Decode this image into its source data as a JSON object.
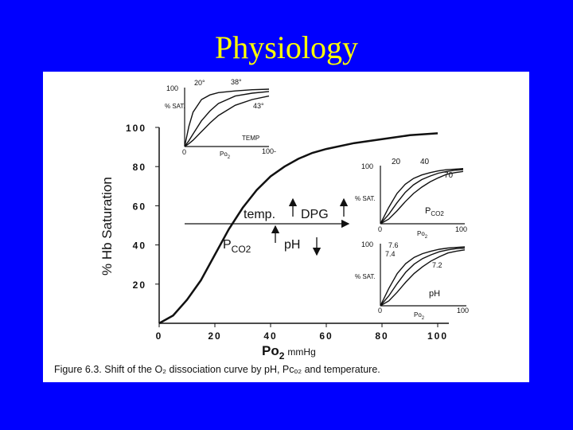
{
  "slide": {
    "title": "Physiology",
    "colors": {
      "background": "#0000ff",
      "title": "#ffff00",
      "figure_bg": "#ffffff",
      "ink": "#111111"
    }
  },
  "figure": {
    "caption": "Figure 6.3.  Shift of the O₂ dissociation curve by pH, Pᴄₒ₂ and temperature."
  },
  "chart_data": [
    {
      "type": "line",
      "title": "",
      "xlabel_main": "Po",
      "xlabel_sub": "2",
      "xlabel_unit": "mmHg",
      "ylabel": "% Hb Saturation",
      "xlim": [
        0,
        100
      ],
      "ylim": [
        0,
        100
      ],
      "xticks": [
        0,
        20,
        40,
        60,
        80,
        100
      ],
      "yticks": [
        20,
        40,
        60,
        80,
        100
      ],
      "series": [
        {
          "x": [
            0,
            5,
            10,
            15,
            20,
            25,
            30,
            35,
            40,
            45,
            50,
            55,
            60,
            70,
            80,
            90,
            100
          ],
          "y": [
            0,
            4,
            12,
            22,
            35,
            48,
            59,
            68,
            75,
            80,
            84,
            87,
            89,
            92,
            94,
            96,
            97
          ]
        }
      ],
      "annotations": {
        "temp": "temp.",
        "dpg": "DPG",
        "pco2_main": "P",
        "pco2_sub": "CO2",
        "ph": "pH"
      }
    },
    {
      "type": "line",
      "title": "",
      "ylabel": "% SAT.",
      "xlabel": "TEMP",
      "xlabel_po2": "Po",
      "xlabel_po2_sub": "2",
      "xlim": [
        0,
        100
      ],
      "ylim": [
        0,
        100
      ],
      "tick_labels": {
        "y_top": "100",
        "x_zero": "0",
        "x_end": "100-"
      },
      "series": [
        {
          "name": "20°",
          "x": [
            0,
            5,
            10,
            20,
            30,
            40,
            60,
            80,
            100
          ],
          "y": [
            0,
            35,
            60,
            82,
            90,
            94,
            97,
            99,
            100
          ]
        },
        {
          "name": "38°",
          "x": [
            0,
            5,
            10,
            20,
            30,
            40,
            60,
            80,
            100
          ],
          "y": [
            0,
            10,
            22,
            45,
            62,
            75,
            88,
            93,
            96
          ]
        },
        {
          "name": "43°",
          "x": [
            0,
            5,
            10,
            20,
            30,
            40,
            60,
            80,
            100
          ],
          "y": [
            0,
            5,
            11,
            26,
            41,
            54,
            72,
            82,
            88
          ]
        }
      ]
    },
    {
      "type": "line",
      "title": "",
      "ylabel": "% SAT.",
      "xlabel": "PCO2",
      "xlabel_main": "P",
      "xlabel_sub": "CO2",
      "xlabel_po2": "Po",
      "xlabel_po2_sub": "2",
      "xlim": [
        0,
        100
      ],
      "ylim": [
        0,
        100
      ],
      "tick_labels": {
        "y_top": "100",
        "x_zero": "0",
        "x_end": "100"
      },
      "series": [
        {
          "name": "20",
          "x": [
            0,
            10,
            20,
            30,
            40,
            50,
            60,
            70,
            80,
            90,
            100
          ],
          "y": [
            0,
            28,
            52,
            68,
            78,
            84,
            88,
            91,
            93,
            94,
            95
          ]
        },
        {
          "name": "40",
          "x": [
            0,
            10,
            20,
            30,
            40,
            50,
            60,
            70,
            80,
            90,
            100
          ],
          "y": [
            0,
            16,
            36,
            54,
            67,
            76,
            82,
            87,
            90,
            92,
            93
          ]
        },
        {
          "name": "70",
          "x": [
            0,
            10,
            20,
            30,
            40,
            50,
            60,
            70,
            80,
            90,
            100
          ],
          "y": [
            0,
            8,
            22,
            38,
            52,
            63,
            72,
            79,
            85,
            88,
            90
          ]
        }
      ]
    },
    {
      "type": "line",
      "title": "",
      "ylabel": "% SAT.",
      "xlabel": "pH",
      "xlabel_po2": "Po",
      "xlabel_po2_sub": "2",
      "xlim": [
        0,
        100
      ],
      "ylim": [
        0,
        100
      ],
      "tick_labels": {
        "y_top": "100",
        "x_zero": "0",
        "x_end": "100"
      },
      "series": [
        {
          "name": "7.6",
          "x": [
            0,
            10,
            20,
            30,
            40,
            50,
            60,
            70,
            80,
            90,
            100
          ],
          "y": [
            0,
            28,
            52,
            68,
            78,
            84,
            88,
            91,
            93,
            94,
            95
          ]
        },
        {
          "name": "7.4",
          "x": [
            0,
            10,
            20,
            30,
            40,
            50,
            60,
            70,
            80,
            90,
            100
          ],
          "y": [
            0,
            16,
            36,
            54,
            67,
            76,
            82,
            87,
            90,
            92,
            93
          ]
        },
        {
          "name": "7.2",
          "x": [
            0,
            10,
            20,
            30,
            40,
            50,
            60,
            70,
            80,
            90,
            100
          ],
          "y": [
            0,
            8,
            22,
            38,
            52,
            63,
            72,
            79,
            85,
            88,
            90
          ]
        }
      ]
    }
  ]
}
